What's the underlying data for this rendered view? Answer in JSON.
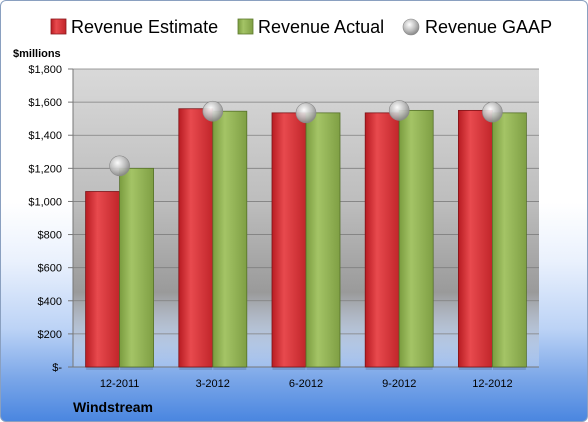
{
  "chart_data": {
    "type": "bar",
    "company": "Windstream",
    "unit_label": "$millions",
    "categories": [
      "12-2011",
      "3-2012",
      "6-2012",
      "9-2012",
      "12-2012"
    ],
    "series": [
      {
        "name": "Revenue Estimate",
        "type": "bar",
        "color": "#d42a2f",
        "values": [
          1060,
          1560,
          1535,
          1535,
          1550
        ]
      },
      {
        "name": "Revenue Actual",
        "type": "bar",
        "color": "#8cb04f",
        "values": [
          1200,
          1545,
          1535,
          1550,
          1535
        ]
      },
      {
        "name": "Revenue GAAP",
        "type": "marker",
        "color": "#b0b0b0",
        "values": [
          1215,
          1545,
          1535,
          1550,
          1540
        ]
      }
    ],
    "y_ticks": [
      "$-",
      "$200",
      "$400",
      "$600",
      "$800",
      "$1,000",
      "$1,200",
      "$1,400",
      "$1,600",
      "$1,800"
    ],
    "ylim": [
      0,
      1800
    ],
    "grid": true,
    "legend_position": "top"
  }
}
